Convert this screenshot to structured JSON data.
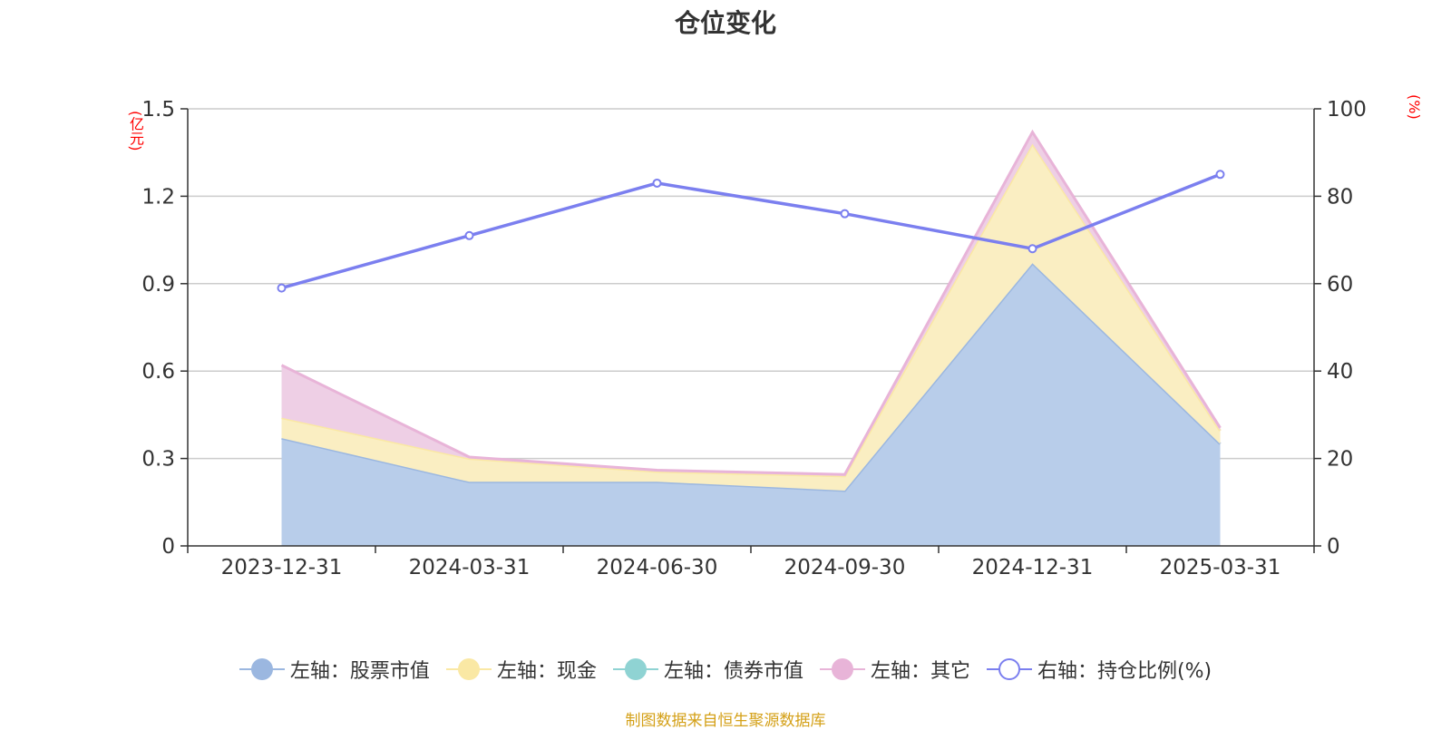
{
  "chart_data": {
    "type": "area",
    "title": "仓位变化",
    "left_axis_unit": "(亿元)",
    "right_axis_unit": "(%)",
    "categories": [
      "2023-12-31",
      "2024-03-31",
      "2024-06-30",
      "2024-09-30",
      "2024-12-31",
      "2025-03-31"
    ],
    "left_axis": {
      "min": 0,
      "max": 1.5,
      "ticks": [
        "0",
        "0.3",
        "0.6",
        "0.9",
        "1.2",
        "1.5"
      ],
      "tick_values": [
        0,
        0.3,
        0.6,
        0.9,
        1.2,
        1.5
      ]
    },
    "right_axis": {
      "min": 0,
      "max": 100,
      "ticks": [
        "0",
        "20",
        "40",
        "60",
        "80",
        "100"
      ],
      "tick_values": [
        0,
        20,
        40,
        60,
        80,
        100
      ]
    },
    "grid": true,
    "legend_position": "bottom",
    "stacked_series": [
      {
        "name": "左轴：股票市值",
        "axis": "left",
        "color": "#9bb7e0",
        "fill": "#b8cdea",
        "values": [
          0.37,
          0.22,
          0.22,
          0.19,
          0.97,
          0.35
        ]
      },
      {
        "name": "左轴：现金",
        "axis": "left",
        "color": "#fae8a4",
        "fill": "#faeec2",
        "values": [
          0.07,
          0.08,
          0.035,
          0.05,
          0.41,
          0.045
        ]
      },
      {
        "name": "左轴：债券市值",
        "axis": "left",
        "color": "#8fd3d3",
        "fill": "#bde6e6",
        "values": [
          0,
          0,
          0,
          0,
          0,
          0
        ]
      },
      {
        "name": "左轴：其它",
        "axis": "left",
        "color": "#e8b4d8",
        "fill": "#eecfe5",
        "values": [
          0.18,
          0.005,
          0.005,
          0.005,
          0.04,
          0.01
        ]
      }
    ],
    "line_series": [
      {
        "name": "右轴：持仓比例(%)",
        "axis": "right",
        "color": "#7b7fef",
        "values": [
          59,
          71,
          83,
          76,
          68,
          85
        ]
      }
    ]
  },
  "footer": {
    "source": "制图数据来自恒生聚源数据库"
  }
}
